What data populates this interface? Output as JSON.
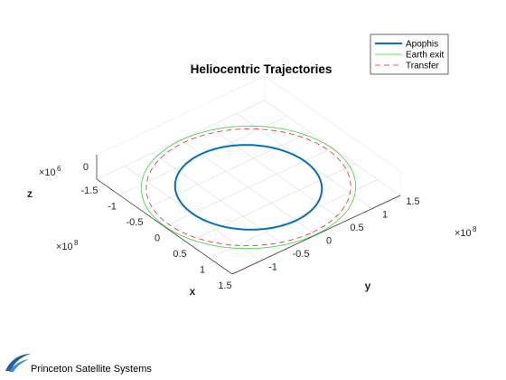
{
  "chart_data": {
    "type": "line",
    "title": "Heliocentric Trajectories",
    "xlabel": "x",
    "ylabel": "y",
    "zlabel": "z",
    "x_ticks": [
      "-1.5",
      "-1",
      "-0.5",
      "0",
      "0.5",
      "1",
      "1.5"
    ],
    "y_ticks": [
      "-1",
      "-0.5",
      "0",
      "0.5",
      "1",
      "1.5"
    ],
    "z_ticks": [
      "0"
    ],
    "x_exponent": "×10^8",
    "y_exponent": "×10^8",
    "z_exponent": "×10^6",
    "xlim": [
      -150000000.0,
      150000000.0
    ],
    "ylim": [
      -150000000.0,
      150000000.0
    ],
    "grid": true,
    "legend_position": "top-right",
    "series": [
      {
        "name": "Apophis",
        "color": "#0072BD",
        "style": "solid",
        "width": 2,
        "radius_x": 105000000.0,
        "radius_y": 100000000.0
      },
      {
        "name": "Earth exit",
        "color": "#3CD23C",
        "style": "solid",
        "width": 0.8,
        "radius_x": 149000000.0,
        "radius_y": 149000000.0
      },
      {
        "name": "Transfer",
        "color": "#E8262B",
        "style": "dashed",
        "width": 0.8,
        "radius_x": 142000000.0,
        "radius_y": 142000000.0
      }
    ]
  },
  "footer": {
    "company": "Princeton Satellite Systems"
  }
}
